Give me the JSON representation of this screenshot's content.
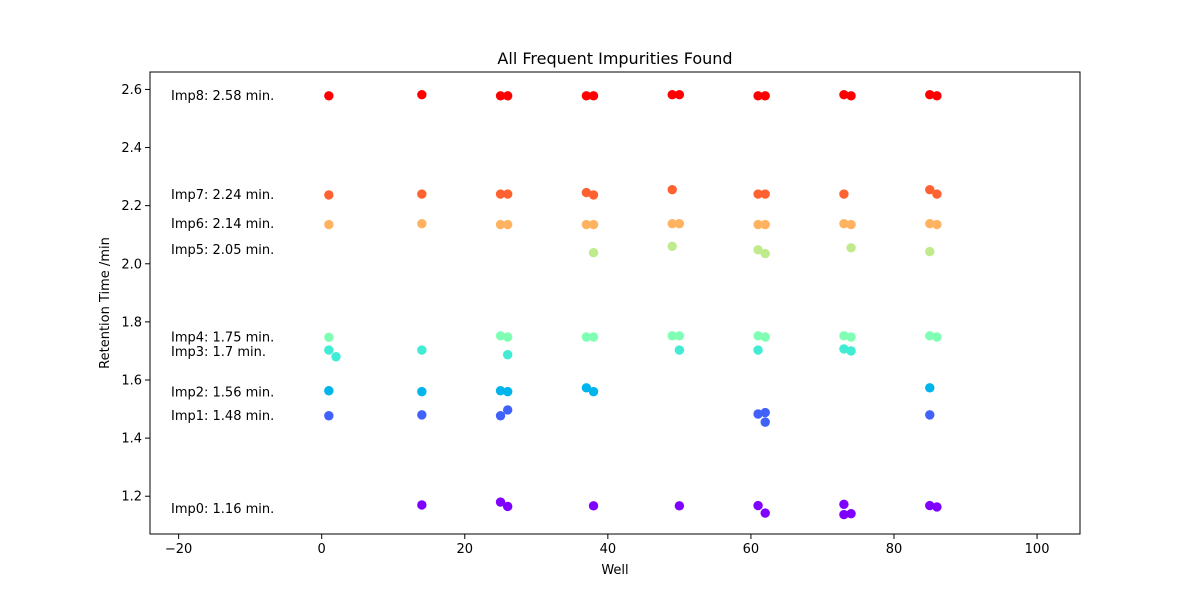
{
  "chart_data": {
    "type": "scatter",
    "title": "All Frequent Impurities Found",
    "xlabel": "Well",
    "ylabel": "Retention Time /min",
    "xlim": [
      -24,
      106
    ],
    "ylim": [
      1.07,
      2.66
    ],
    "xticks": [
      -20,
      0,
      20,
      40,
      60,
      80,
      100
    ],
    "xtick_labels": [
      "−20",
      "0",
      "20",
      "40",
      "60",
      "80",
      "100"
    ],
    "yticks": [
      1.2,
      1.4,
      1.6,
      1.8,
      2.0,
      2.2,
      2.4,
      2.6
    ],
    "ytick_labels": [
      "1.2",
      "1.4",
      "1.6",
      "1.8",
      "2.0",
      "2.2",
      "2.4",
      "2.6"
    ],
    "grid": false,
    "series": [
      {
        "label": "Imp0: 1.16 min.",
        "label_y": 1.16,
        "color": "#8000ff",
        "points": [
          [
            14,
            1.17
          ],
          [
            25,
            1.18
          ],
          [
            26,
            1.165
          ],
          [
            38,
            1.167
          ],
          [
            50,
            1.167
          ],
          [
            61,
            1.168
          ],
          [
            62,
            1.142
          ],
          [
            73,
            1.172
          ],
          [
            73,
            1.137
          ],
          [
            74,
            1.14
          ],
          [
            85,
            1.168
          ],
          [
            86,
            1.163
          ]
        ]
      },
      {
        "label": "Imp1: 1.48 min.",
        "label_y": 1.48,
        "color": "#4062fa",
        "points": [
          [
            1,
            1.477
          ],
          [
            14,
            1.48
          ],
          [
            25,
            1.477
          ],
          [
            26,
            1.497
          ],
          [
            61,
            1.483
          ],
          [
            62,
            1.488
          ],
          [
            62,
            1.455
          ],
          [
            85,
            1.48
          ]
        ]
      },
      {
        "label": "Imp2: 1.56 min.",
        "label_y": 1.56,
        "color": "#00b5eb",
        "points": [
          [
            1,
            1.563
          ],
          [
            14,
            1.56
          ],
          [
            25,
            1.563
          ],
          [
            26,
            1.56
          ],
          [
            37,
            1.573
          ],
          [
            38,
            1.56
          ],
          [
            85,
            1.573
          ]
        ]
      },
      {
        "label": "Imp3: 1.7 min.",
        "label_y": 1.7,
        "color": "#40ecd4",
        "points": [
          [
            1,
            1.703
          ],
          [
            2,
            1.68
          ],
          [
            14,
            1.703
          ],
          [
            26,
            1.687
          ],
          [
            50,
            1.703
          ],
          [
            61,
            1.703
          ],
          [
            73,
            1.707
          ],
          [
            74,
            1.7
          ]
        ]
      },
      {
        "label": "Imp4: 1.75 min.",
        "label_y": 1.75,
        "color": "#80ffb4",
        "points": [
          [
            1,
            1.747
          ],
          [
            25,
            1.752
          ],
          [
            26,
            1.748
          ],
          [
            37,
            1.748
          ],
          [
            38,
            1.748
          ],
          [
            49,
            1.752
          ],
          [
            50,
            1.752
          ],
          [
            61,
            1.752
          ],
          [
            62,
            1.748
          ],
          [
            73,
            1.752
          ],
          [
            74,
            1.748
          ],
          [
            85,
            1.752
          ],
          [
            86,
            1.748
          ]
        ]
      },
      {
        "label": "Imp5: 2.05 min.",
        "label_y": 2.05,
        "color": "#c0eb8d",
        "points": [
          [
            38,
            2.038
          ],
          [
            49,
            2.06
          ],
          [
            61,
            2.048
          ],
          [
            62,
            2.035
          ],
          [
            74,
            2.055
          ],
          [
            85,
            2.042
          ]
        ]
      },
      {
        "label": "Imp6: 2.14 min.",
        "label_y": 2.14,
        "color": "#ffb360",
        "points": [
          [
            1,
            2.135
          ],
          [
            14,
            2.138
          ],
          [
            25,
            2.135
          ],
          [
            26,
            2.135
          ],
          [
            37,
            2.135
          ],
          [
            38,
            2.135
          ],
          [
            49,
            2.138
          ],
          [
            50,
            2.138
          ],
          [
            61,
            2.135
          ],
          [
            62,
            2.135
          ],
          [
            73,
            2.138
          ],
          [
            74,
            2.135
          ],
          [
            85,
            2.138
          ],
          [
            86,
            2.135
          ]
        ]
      },
      {
        "label": "Imp7: 2.24 min.",
        "label_y": 2.24,
        "color": "#ff6230",
        "points": [
          [
            1,
            2.237
          ],
          [
            14,
            2.24
          ],
          [
            25,
            2.24
          ],
          [
            26,
            2.24
          ],
          [
            37,
            2.245
          ],
          [
            38,
            2.237
          ],
          [
            49,
            2.255
          ],
          [
            61,
            2.24
          ],
          [
            62,
            2.24
          ],
          [
            73,
            2.24
          ],
          [
            85,
            2.255
          ],
          [
            86,
            2.24
          ]
        ]
      },
      {
        "label": "Imp8: 2.58 min.",
        "label_y": 2.58,
        "color": "#ff0000",
        "points": [
          [
            1,
            2.578
          ],
          [
            14,
            2.582
          ],
          [
            25,
            2.578
          ],
          [
            26,
            2.578
          ],
          [
            37,
            2.578
          ],
          [
            38,
            2.578
          ],
          [
            49,
            2.582
          ],
          [
            50,
            2.582
          ],
          [
            61,
            2.578
          ],
          [
            62,
            2.578
          ],
          [
            73,
            2.582
          ],
          [
            74,
            2.578
          ],
          [
            85,
            2.582
          ],
          [
            86,
            2.578
          ]
        ]
      }
    ]
  }
}
